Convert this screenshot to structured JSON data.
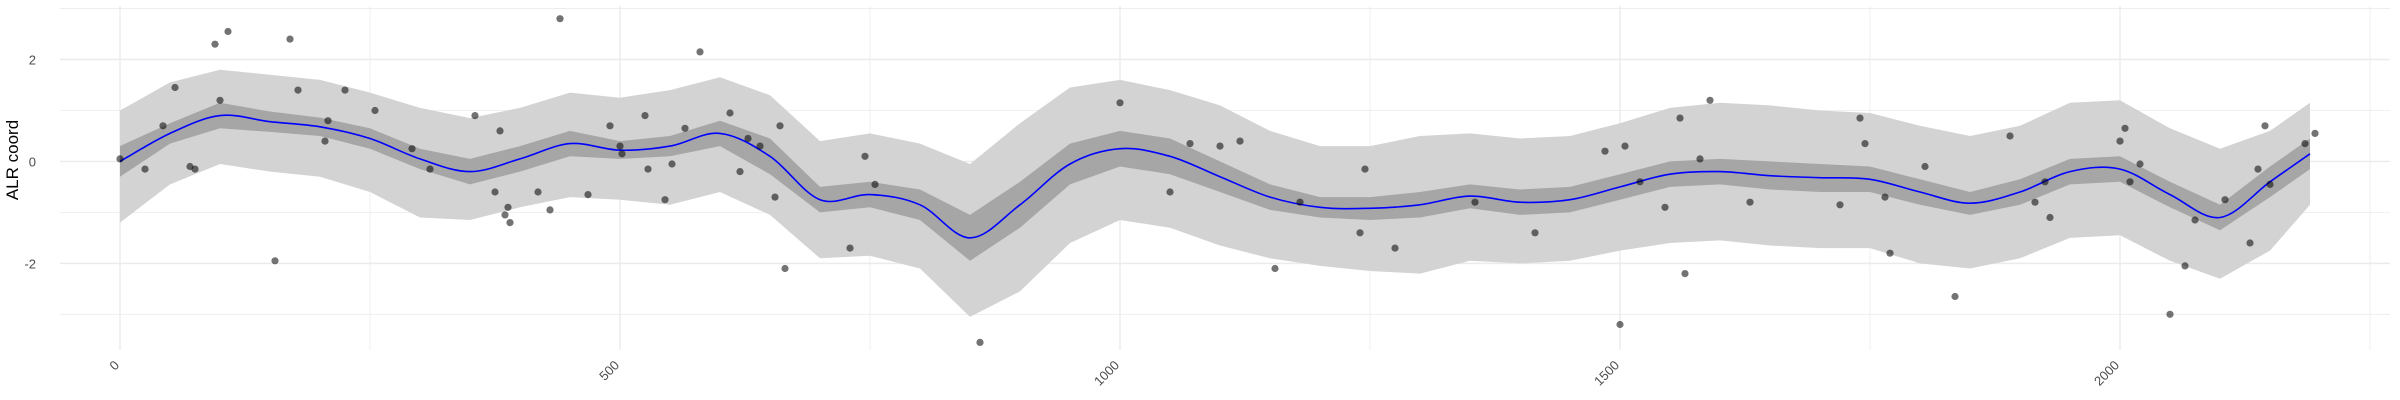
{
  "chart_data": {
    "type": "scatter",
    "title": "",
    "xlabel": "",
    "ylabel": "ALR coord",
    "xlim": [
      -60,
      2270
    ],
    "ylim": [
      -3.7,
      3.05
    ],
    "x_ticks": [
      0,
      500,
      1000,
      1500,
      2000
    ],
    "y_ticks": [
      -2,
      0,
      2
    ],
    "x_tick_labels": [
      "0",
      "500",
      "1000",
      "1500",
      "2000"
    ],
    "y_tick_labels": [
      "-2",
      "0",
      "2"
    ],
    "grid": true,
    "legend": "none",
    "colors": {
      "points": "#000000",
      "smooth_line": "#0000ff",
      "inner_band": "#a6a6a6",
      "outer_band": "#d3d3d3",
      "grid": "#ebebeb"
    },
    "series": [
      {
        "kind": "points",
        "x": [
          0,
          25,
          43,
          55,
          70,
          75,
          95,
          100,
          108,
          155,
          170,
          178,
          205,
          208,
          225,
          255,
          292,
          310,
          355,
          375,
          380,
          385,
          388,
          390,
          418,
          430,
          440,
          468,
          490,
          500,
          502,
          525,
          528,
          545,
          552,
          565,
          580,
          610,
          620,
          628,
          640,
          655,
          660,
          665,
          730,
          745,
          755,
          860,
          1000,
          1050,
          1070,
          1100,
          1120,
          1155,
          1180,
          1240,
          1245,
          1275,
          1355,
          1415,
          1485,
          1500,
          1505,
          1520,
          1545,
          1560,
          1565,
          1580,
          1590,
          1630,
          1720,
          1740,
          1745,
          1765,
          1770,
          1805,
          1835,
          1890,
          1915,
          1925,
          1930,
          2000,
          2005,
          2010,
          2020,
          2050,
          2065,
          2075,
          2105,
          2130,
          2138,
          2145,
          2150,
          2185,
          2195
        ],
        "y": [
          0.05,
          -0.15,
          0.7,
          1.45,
          -0.1,
          -0.15,
          2.3,
          1.2,
          2.55,
          -1.95,
          2.4,
          1.4,
          0.4,
          0.8,
          1.4,
          1.0,
          0.25,
          -0.15,
          0.9,
          -0.6,
          0.6,
          -1.05,
          -0.9,
          -1.2,
          -0.6,
          -0.95,
          2.8,
          -0.65,
          0.7,
          0.3,
          0.15,
          0.9,
          -0.15,
          -0.75,
          -0.05,
          0.65,
          2.15,
          0.95,
          -0.2,
          0.45,
          0.3,
          -0.7,
          0.7,
          -2.1,
          -1.7,
          0.1,
          -0.45,
          -3.55,
          1.15,
          -0.6,
          0.35,
          0.3,
          0.4,
          -2.1,
          -0.8,
          -1.4,
          -0.15,
          -1.7,
          -0.8,
          -1.4,
          0.2,
          -3.2,
          0.3,
          -0.4,
          -0.9,
          0.85,
          -2.2,
          0.05,
          1.2,
          -0.8,
          -0.85,
          0.85,
          0.35,
          -0.7,
          -1.8,
          -0.1,
          -2.65,
          0.5,
          -0.8,
          -0.4,
          -1.1,
          0.4,
          0.65,
          -0.4,
          -0.05,
          -3.0,
          -2.05,
          -1.15,
          -0.75,
          -1.6,
          -0.15,
          0.7,
          -0.45,
          0.35,
          0.55
        ]
      },
      {
        "kind": "smooth_with_bands",
        "x": [
          0,
          50,
          100,
          150,
          200,
          250,
          300,
          350,
          400,
          450,
          500,
          550,
          600,
          650,
          700,
          750,
          800,
          850,
          900,
          950,
          1000,
          1050,
          1100,
          1150,
          1200,
          1250,
          1300,
          1350,
          1400,
          1450,
          1500,
          1550,
          1600,
          1650,
          1700,
          1750,
          1800,
          1850,
          1900,
          1950,
          2000,
          2050,
          2100,
          2150,
          2190
        ],
        "y": [
          0.0,
          0.55,
          0.9,
          0.78,
          0.68,
          0.45,
          0.05,
          -0.2,
          0.05,
          0.35,
          0.22,
          0.3,
          0.55,
          0.1,
          -0.75,
          -0.65,
          -0.85,
          -1.5,
          -0.85,
          -0.05,
          0.25,
          0.1,
          -0.3,
          -0.7,
          -0.9,
          -0.92,
          -0.85,
          -0.68,
          -0.8,
          -0.75,
          -0.5,
          -0.25,
          -0.2,
          -0.28,
          -0.32,
          -0.35,
          -0.6,
          -0.82,
          -0.6,
          -0.2,
          -0.15,
          -0.65,
          -1.1,
          -0.4,
          0.15
        ],
        "inner_lower": [
          -0.3,
          0.35,
          0.65,
          0.58,
          0.5,
          0.25,
          -0.15,
          -0.45,
          -0.2,
          0.1,
          0.05,
          0.1,
          0.3,
          -0.25,
          -1.0,
          -0.9,
          -1.15,
          -1.95,
          -1.3,
          -0.45,
          -0.1,
          -0.25,
          -0.6,
          -0.95,
          -1.1,
          -1.15,
          -1.1,
          -0.92,
          -1.05,
          -1.0,
          -0.75,
          -0.5,
          -0.45,
          -0.55,
          -0.6,
          -0.6,
          -0.85,
          -1.05,
          -0.85,
          -0.45,
          -0.4,
          -0.9,
          -1.35,
          -0.7,
          -0.15
        ],
        "inner_upper": [
          0.3,
          0.75,
          1.15,
          0.98,
          0.86,
          0.65,
          0.25,
          0.05,
          0.3,
          0.6,
          0.4,
          0.5,
          0.8,
          0.45,
          -0.5,
          -0.4,
          -0.55,
          -1.05,
          -0.4,
          0.35,
          0.6,
          0.45,
          0.0,
          -0.45,
          -0.7,
          -0.7,
          -0.6,
          -0.45,
          -0.55,
          -0.5,
          -0.25,
          0.0,
          0.05,
          0.0,
          -0.05,
          -0.1,
          -0.35,
          -0.6,
          -0.35,
          0.05,
          0.1,
          -0.4,
          -0.85,
          -0.1,
          0.45
        ],
        "outer_lower": [
          -1.2,
          -0.45,
          -0.05,
          -0.2,
          -0.3,
          -0.6,
          -1.1,
          -1.15,
          -0.9,
          -0.7,
          -0.75,
          -0.85,
          -0.6,
          -1.05,
          -1.9,
          -1.85,
          -2.1,
          -3.05,
          -2.55,
          -1.6,
          -1.15,
          -1.3,
          -1.65,
          -1.9,
          -2.05,
          -2.15,
          -2.2,
          -1.95,
          -2.0,
          -1.95,
          -1.75,
          -1.6,
          -1.55,
          -1.65,
          -1.7,
          -1.7,
          -2.0,
          -2.1,
          -1.9,
          -1.5,
          -1.45,
          -1.95,
          -2.3,
          -1.75,
          -0.85
        ],
        "outer_upper": [
          1.0,
          1.55,
          1.8,
          1.7,
          1.6,
          1.35,
          1.05,
          0.85,
          1.05,
          1.35,
          1.25,
          1.4,
          1.65,
          1.3,
          0.4,
          0.55,
          0.35,
          -0.05,
          0.75,
          1.45,
          1.6,
          1.4,
          1.1,
          0.6,
          0.3,
          0.3,
          0.5,
          0.55,
          0.45,
          0.5,
          0.75,
          1.05,
          1.15,
          1.1,
          1.0,
          0.95,
          0.7,
          0.5,
          0.7,
          1.15,
          1.2,
          0.65,
          0.25,
          0.6,
          1.15
        ]
      }
    ]
  }
}
